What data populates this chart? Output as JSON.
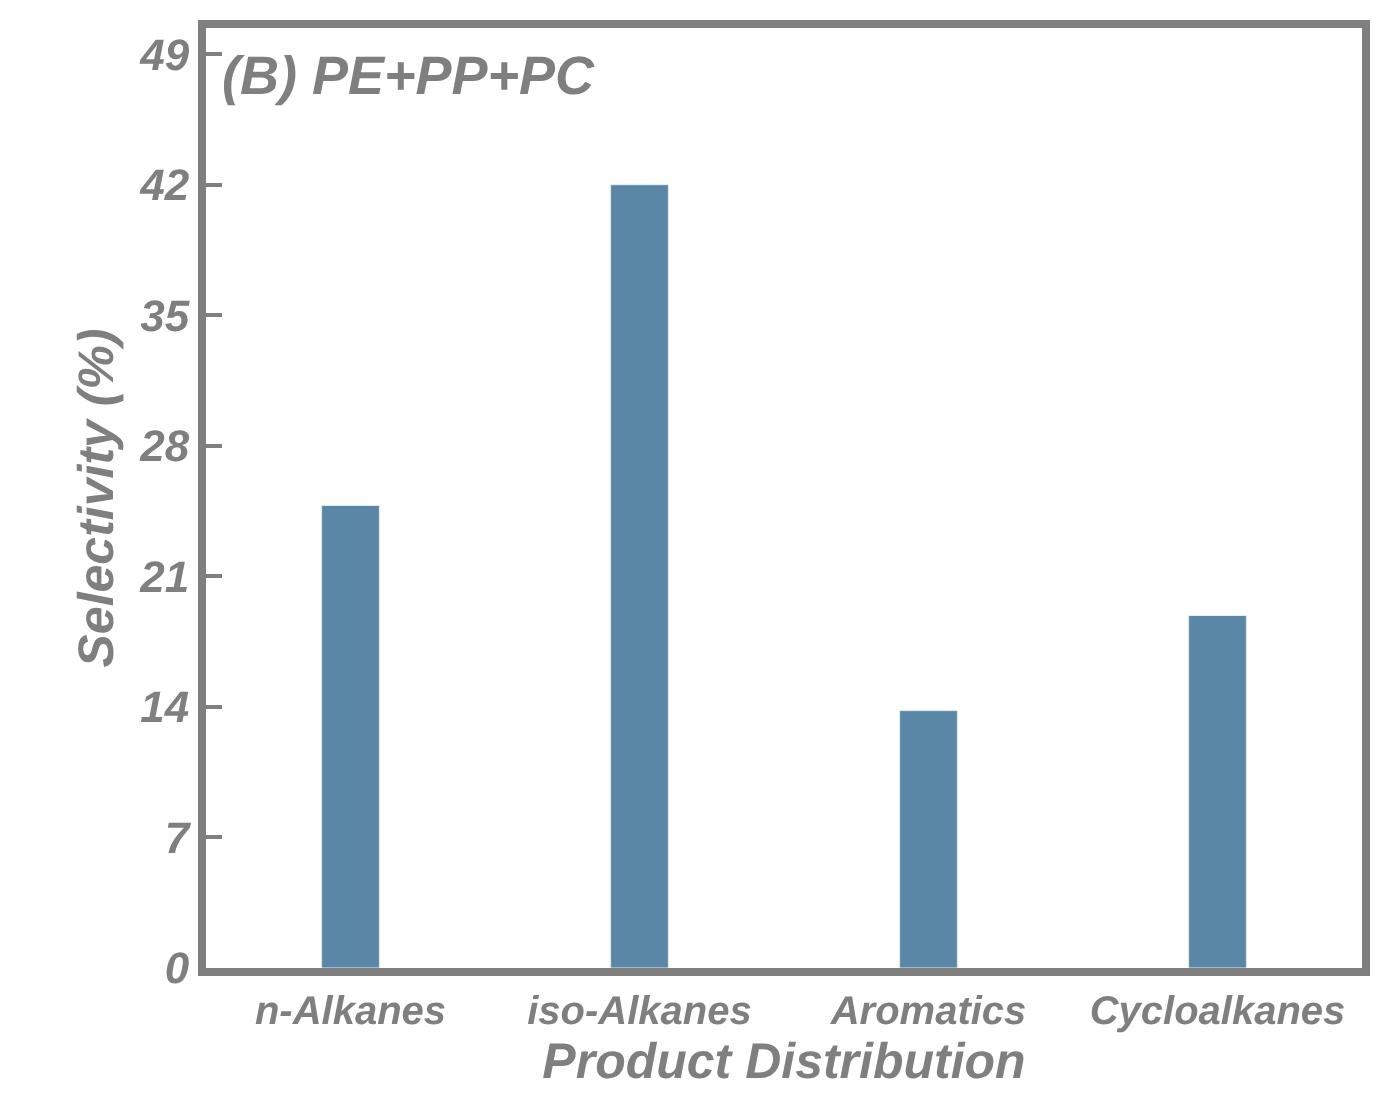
{
  "chart_data": {
    "type": "bar",
    "title": "(B) PE+PP+PC",
    "xlabel": "Product Distribution",
    "ylabel": "Selectivity (%)",
    "categories": [
      "n-Alkanes",
      "iso-Alkanes",
      "Aromatics",
      "Cycloalkanes"
    ],
    "values": [
      24.8,
      42.0,
      13.8,
      18.9
    ],
    "color": "#5b87a6",
    "ylim": [
      0,
      50.4
    ],
    "yticks": [
      0,
      7,
      14,
      21,
      28,
      35,
      42,
      49
    ],
    "legend": false
  }
}
